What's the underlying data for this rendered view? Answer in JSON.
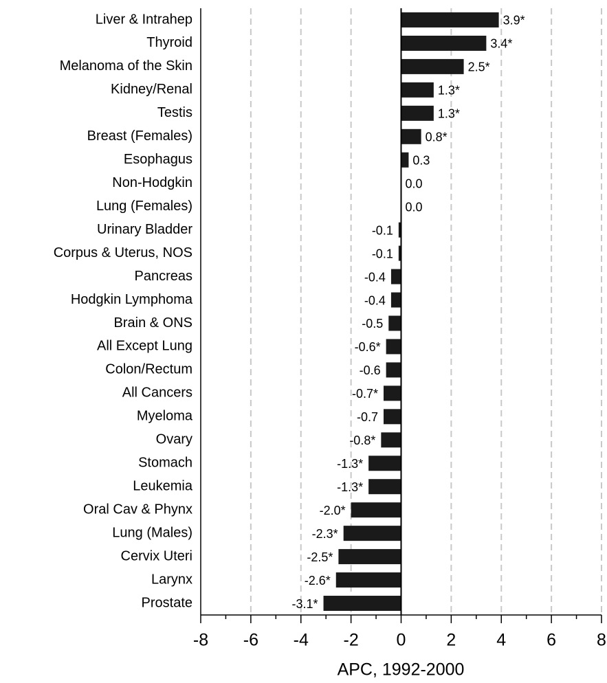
{
  "chart_data": {
    "type": "barh",
    "x_label": "APC, 1992-2000",
    "categories": [
      "Liver & Intrahep",
      "Thyroid",
      "Melanoma of the Skin",
      "Kidney/Renal",
      "Testis",
      "Breast (Females)",
      "Esophagus",
      "Non-Hodgkin",
      "Lung (Females)",
      "Urinary Bladder",
      "Corpus & Uterus, NOS",
      "Pancreas",
      "Hodgkin Lymphoma",
      "Brain & ONS",
      "All Except Lung",
      "Colon/Rectum",
      "All Cancers",
      "Myeloma",
      "Ovary",
      "Stomach",
      "Leukemia",
      "Oral Cav & Phynx",
      "Lung (Males)",
      "Cervix Uteri",
      "Larynx",
      "Prostate"
    ],
    "values": [
      3.9,
      3.4,
      2.5,
      1.3,
      1.3,
      0.8,
      0.3,
      0.0,
      0.0,
      -0.1,
      -0.1,
      -0.4,
      -0.4,
      -0.5,
      -0.6,
      -0.6,
      -0.7,
      -0.7,
      -0.8,
      -1.3,
      -1.3,
      -2.0,
      -2.3,
      -2.5,
      -2.6,
      -3.1
    ],
    "value_labels": [
      "3.9*",
      "3.4*",
      "2.5*",
      "1.3*",
      "1.3*",
      "0.8*",
      "0.3",
      "0.0",
      "0.0",
      "-0.1",
      "-0.1",
      "-0.4",
      "-0.4",
      "-0.5",
      "-0.6*",
      "-0.6",
      "-0.7*",
      "-0.7",
      "-0.8*",
      "-1.3*",
      "-1.3*",
      "-2.0*",
      "-2.3*",
      "-2.5*",
      "-2.6*",
      "-3.1*"
    ],
    "color": "#1a1a1a",
    "xlim": [
      -8,
      8
    ],
    "xticks": [
      -8,
      -6,
      -4,
      -2,
      0,
      2,
      4,
      6,
      8
    ],
    "grid": true
  }
}
